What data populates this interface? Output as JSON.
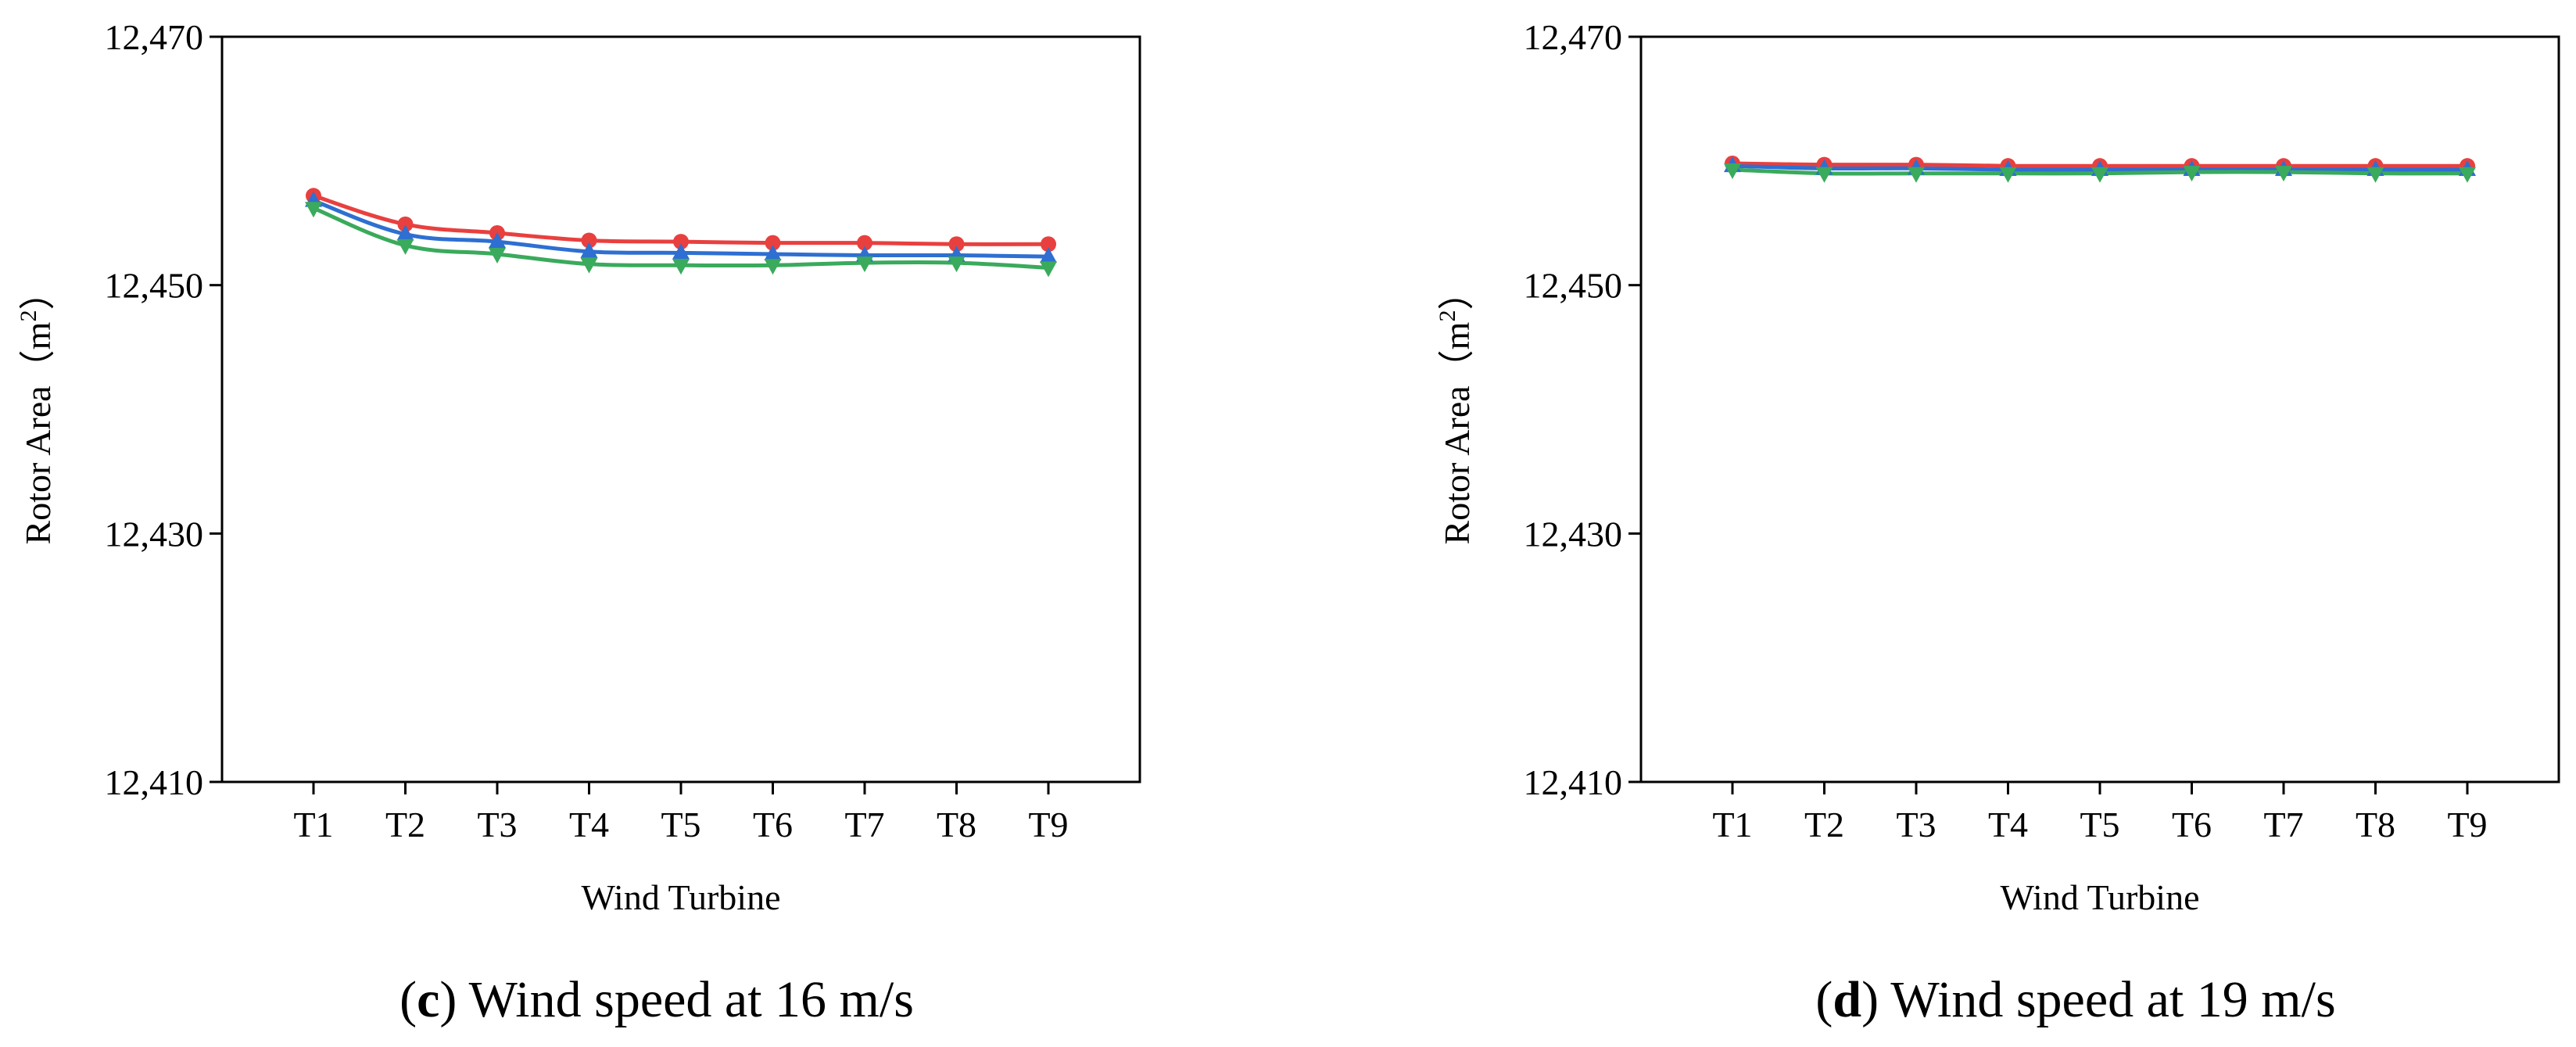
{
  "chart_data": [
    {
      "type": "line",
      "panel_letter": "c",
      "caption": "Wind speed at 16 m/s",
      "xlabel": "Wind Turbine",
      "ylabel": "Rotor Area",
      "ylabel_unit_base": "m",
      "ylabel_unit_exp": "2",
      "ylim": [
        12410,
        12470
      ],
      "yticks": [
        12410,
        12430,
        12450,
        12470
      ],
      "ytick_labels": [
        "12,410",
        "12,430",
        "12,450",
        "12,470"
      ],
      "categories": [
        "T1",
        "T2",
        "T3",
        "T4",
        "T5",
        "T6",
        "T7",
        "T8",
        "T9"
      ],
      "series": [
        {
          "name": "series-red",
          "color": "#e8403f",
          "marker": "circle",
          "values": [
            12457.2,
            12454.9,
            12454.2,
            12453.6,
            12453.5,
            12453.4,
            12453.4,
            12453.3,
            12453.3
          ]
        },
        {
          "name": "series-blue",
          "color": "#2e6fd1",
          "marker": "triangle-up",
          "values": [
            12456.8,
            12454.1,
            12453.5,
            12452.7,
            12452.6,
            12452.5,
            12452.4,
            12452.4,
            12452.3
          ]
        },
        {
          "name": "series-green",
          "color": "#3aaa5c",
          "marker": "triangle-down",
          "values": [
            12456.2,
            12453.2,
            12452.5,
            12451.7,
            12451.6,
            12451.6,
            12451.8,
            12451.8,
            12451.4
          ]
        }
      ]
    },
    {
      "type": "line",
      "panel_letter": "d",
      "caption": "Wind speed at 19 m/s",
      "xlabel": "Wind Turbine",
      "ylabel": "Rotor Area",
      "ylabel_unit_base": "m",
      "ylabel_unit_exp": "2",
      "ylim": [
        12410,
        12470
      ],
      "yticks": [
        12410,
        12430,
        12450,
        12470
      ],
      "ytick_labels": [
        "12,410",
        "12,430",
        "12,450",
        "12,470"
      ],
      "categories": [
        "T1",
        "T2",
        "T3",
        "T4",
        "T5",
        "T6",
        "T7",
        "T8",
        "T9"
      ],
      "series": [
        {
          "name": "series-red",
          "color": "#e8403f",
          "marker": "circle",
          "values": [
            12459.8,
            12459.7,
            12459.7,
            12459.6,
            12459.6,
            12459.6,
            12459.6,
            12459.6,
            12459.6
          ]
        },
        {
          "name": "series-blue",
          "color": "#2e6fd1",
          "marker": "triangle-up",
          "values": [
            12459.6,
            12459.4,
            12459.4,
            12459.3,
            12459.3,
            12459.3,
            12459.3,
            12459.3,
            12459.3
          ]
        },
        {
          "name": "series-green",
          "color": "#3aaa5c",
          "marker": "triangle-down",
          "values": [
            12459.3,
            12459.0,
            12459.0,
            12459.0,
            12459.0,
            12459.1,
            12459.1,
            12459.0,
            12459.0
          ]
        }
      ]
    }
  ]
}
